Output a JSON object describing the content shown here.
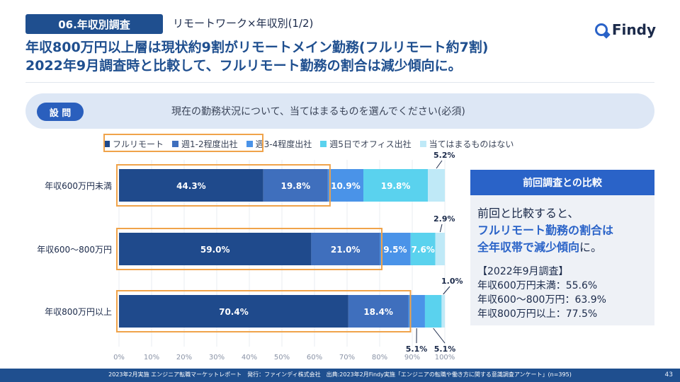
{
  "header": {
    "section_tag": "06.年収別調査",
    "subtitle": "リモートワーク×年収別(1/2)",
    "logo": "Findy",
    "headline_1": "年収800万円以上層は現状約9割がリモートメイン勤務(フルリモート約7割)",
    "headline_2": "2022年9月調査時と比較して、フルリモート勤務の割合は減少傾向に。"
  },
  "question": {
    "badge": "設 問",
    "text": "現在の勤務状況について、当てはまるものを選んでください(必須)"
  },
  "chart_data": {
    "type": "bar",
    "orientation": "horizontal",
    "stacked": true,
    "categories": [
      "年収600万円未満",
      "年収600～800万円",
      "年収800万円以上"
    ],
    "series": [
      {
        "name": "フルリモート",
        "color": "#1f4a8c",
        "values": [
          44.3,
          59.0,
          70.4
        ]
      },
      {
        "name": "週1-2程度出社",
        "color": "#3f6fbd",
        "values": [
          19.8,
          21.0,
          18.4
        ]
      },
      {
        "name": "週3-4程度出社",
        "color": "#4a93e8",
        "values": [
          10.9,
          9.5,
          5.1
        ]
      },
      {
        "name": "週5日でオフィス出社",
        "color": "#5ad2ee",
        "values": [
          19.8,
          7.6,
          5.1
        ]
      },
      {
        "name": "当てはまるものはない",
        "color": "#bfe9f7",
        "values": [
          5.2,
          2.9,
          1.0
        ]
      }
    ],
    "value_labels": [
      [
        "44.3%",
        "19.8%",
        "10.9%",
        "19.8%",
        "5.2%"
      ],
      [
        "59.0%",
        "21.0%",
        "9.5%",
        "7.6%",
        "2.9%"
      ],
      [
        "70.4%",
        "18.4%",
        "5.1%",
        "5.1%",
        "1.0%"
      ]
    ],
    "xlim": [
      0,
      100
    ],
    "ticks": [
      "0%",
      "10%",
      "20%",
      "30%",
      "40%",
      "50%",
      "60%",
      "70%",
      "80%",
      "90%",
      "100%"
    ],
    "highlight_series": [
      "フルリモート",
      "週1-2程度出社"
    ]
  },
  "comparison": {
    "title": "前回調査との比較",
    "text_1": "前回と比較すると、",
    "highlight_1": "フルリモート勤務の割合は",
    "highlight_2": "全年収帯で減少傾向",
    "text_2": "に。",
    "list_title": "【2022年9月調査】",
    "list": [
      "年収600万円未満：55.6%",
      "年収600～800万円：63.9%",
      "年収800万円以上：77.5%"
    ]
  },
  "footer": {
    "text": "2023年2月実施 エンジニア転職マーケットレポート　発行：ファインディ株式会社　出典:2023年2月Findy実施「エンジニアの転職や働き方に関する意識調査アンケート」(n=395)",
    "page": "43"
  }
}
